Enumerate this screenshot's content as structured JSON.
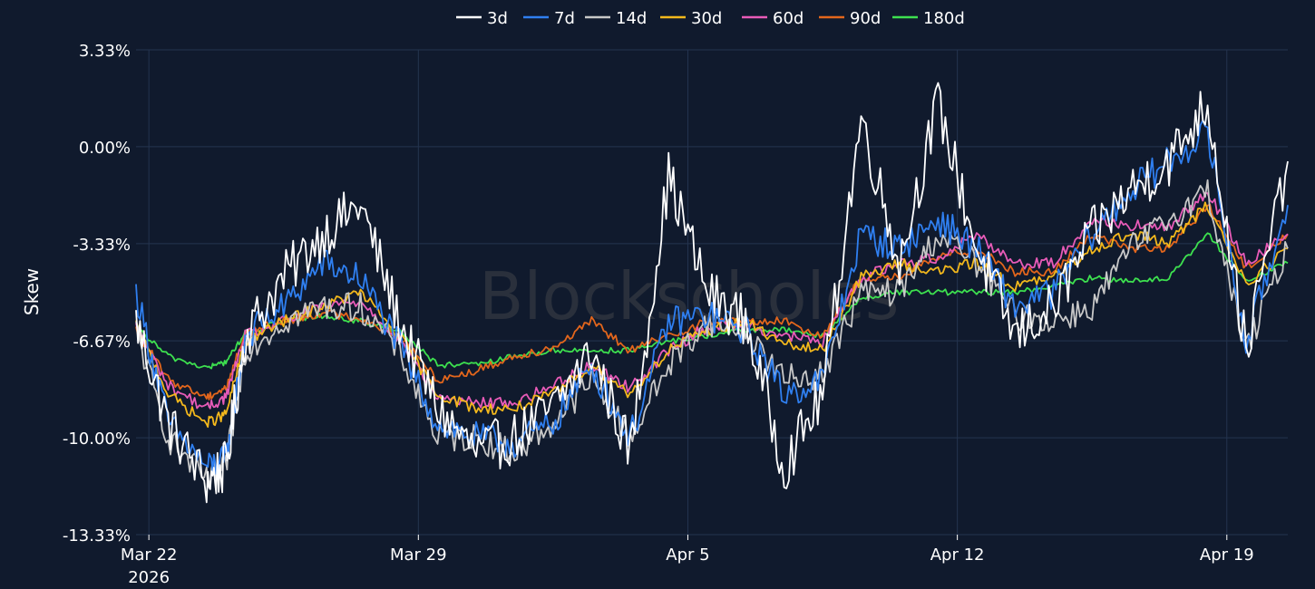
{
  "watermark": "Blockscholes",
  "colors": {
    "background": "#101a2d",
    "grid": "#24344f",
    "text": "#ffffff"
  },
  "chart_data": {
    "type": "line",
    "title": "",
    "xlabel": "",
    "ylabel": "Skew",
    "x_range": [
      "2026-03-21T16:00",
      "2026-04-20T14:00"
    ],
    "ylim": [
      -13.33,
      3.33
    ],
    "y_ticks": [
      {
        "value": 3.33,
        "label": "3.33%"
      },
      {
        "value": 0.0,
        "label": "0.00%"
      },
      {
        "value": -3.33,
        "label": "-3.33%"
      },
      {
        "value": -6.67,
        "label": "-6.67%"
      },
      {
        "value": -10.0,
        "label": "-10.00%"
      },
      {
        "value": -13.33,
        "label": "-13.33%"
      }
    ],
    "x_ticks": [
      {
        "date": "2026-03-22",
        "label": "Mar 22",
        "sublabel": "2026"
      },
      {
        "date": "2026-03-29",
        "label": "Mar 29",
        "sublabel": ""
      },
      {
        "date": "2026-04-05",
        "label": "Apr 5",
        "sublabel": ""
      },
      {
        "date": "2026-04-12",
        "label": "Apr 12",
        "sublabel": ""
      },
      {
        "date": "2026-04-19",
        "label": "Apr 19",
        "sublabel": ""
      }
    ],
    "grid": true,
    "legend_position": "top-center",
    "dates": [
      "2026-03-21T16:00",
      "2026-03-22T12:00",
      "2026-03-23T12:00",
      "2026-03-24T00:00",
      "2026-03-24T12:00",
      "2026-03-25T12:00",
      "2026-03-26T12:00",
      "2026-03-27T12:00",
      "2026-03-28T12:00",
      "2026-03-29T12:00",
      "2026-03-30T12:00",
      "2026-03-31T12:00",
      "2026-04-01T12:00",
      "2026-04-02T12:00",
      "2026-04-03T12:00",
      "2026-04-04T12:00",
      "2026-04-05T12:00",
      "2026-04-06T12:00",
      "2026-04-07T12:00",
      "2026-04-08T12:00",
      "2026-04-09T12:00",
      "2026-04-10T12:00",
      "2026-04-11T12:00",
      "2026-04-12T12:00",
      "2026-04-13T12:00",
      "2026-04-14T12:00",
      "2026-04-15T12:00",
      "2026-04-16T12:00",
      "2026-04-17T12:00",
      "2026-04-18T12:00",
      "2026-04-19T12:00",
      "2026-04-20T14:00"
    ],
    "series": [
      {
        "name": "3d",
        "color": "#ffffff",
        "values": [
          -6.0,
          -9.5,
          -11.5,
          -11.0,
          -6.5,
          -4.5,
          -3.0,
          -2.0,
          -6.0,
          -9.0,
          -10.5,
          -10.0,
          -9.0,
          -7.0,
          -10.5,
          -1.0,
          -5.0,
          -6.0,
          -11.0,
          -8.5,
          1.0,
          -4.0,
          1.5,
          -3.5,
          -6.5,
          -5.5,
          -3.0,
          -1.5,
          -0.5,
          1.5,
          -7.0,
          -0.5
        ]
      },
      {
        "name": "7d",
        "color": "#2f7ff0",
        "values": [
          -5.0,
          -9.5,
          -11.0,
          -10.8,
          -6.5,
          -5.5,
          -4.0,
          -4.5,
          -6.8,
          -9.5,
          -10.0,
          -10.2,
          -9.5,
          -7.5,
          -10.0,
          -6.0,
          -5.8,
          -6.3,
          -8.5,
          -8.0,
          -3.0,
          -3.5,
          -2.5,
          -3.5,
          -5.5,
          -5.0,
          -3.0,
          -1.5,
          -0.5,
          0.5,
          -6.8,
          -2.0
        ]
      },
      {
        "name": "14d",
        "color": "#c8c8c8",
        "values": [
          -6.3,
          -10.0,
          -11.5,
          -11.0,
          -7.0,
          -6.0,
          -5.5,
          -5.5,
          -7.0,
          -10.0,
          -10.0,
          -10.5,
          -9.5,
          -8.0,
          -10.0,
          -7.5,
          -6.0,
          -6.3,
          -8.0,
          -7.8,
          -5.0,
          -5.0,
          -3.0,
          -4.0,
          -5.8,
          -6.0,
          -5.5,
          -3.5,
          -2.5,
          -1.5,
          -7.0,
          -3.5
        ]
      },
      {
        "name": "30d",
        "color": "#f3b81c",
        "values": [
          -6.1,
          -8.5,
          -9.5,
          -9.2,
          -6.7,
          -6.0,
          -5.5,
          -5.0,
          -6.5,
          -8.5,
          -9.0,
          -9.0,
          -8.5,
          -7.5,
          -8.5,
          -7.0,
          -6.3,
          -6.0,
          -6.8,
          -7.0,
          -4.5,
          -4.0,
          -4.3,
          -4.0,
          -4.8,
          -4.5,
          -3.5,
          -3.0,
          -3.3,
          -2.0,
          -4.7,
          -3.5
        ]
      },
      {
        "name": "60d",
        "color": "#e85bb8",
        "values": [
          -6.2,
          -8.2,
          -9.0,
          -8.6,
          -6.5,
          -6.0,
          -5.5,
          -5.3,
          -6.6,
          -8.6,
          -8.8,
          -8.8,
          -8.2,
          -7.5,
          -8.3,
          -7.0,
          -6.2,
          -6.1,
          -6.5,
          -6.7,
          -4.5,
          -4.0,
          -3.8,
          -3.0,
          -4.0,
          -4.0,
          -2.5,
          -2.7,
          -2.8,
          -1.5,
          -4.0,
          -3.0
        ]
      },
      {
        "name": "90d",
        "color": "#e3661c",
        "values": [
          -6.3,
          -8.0,
          -8.6,
          -8.3,
          -6.4,
          -6.0,
          -5.7,
          -5.9,
          -6.5,
          -8.0,
          -7.7,
          -7.2,
          -6.9,
          -6.0,
          -7.0,
          -6.5,
          -6.0,
          -6.0,
          -6.0,
          -6.5,
          -4.5,
          -4.5,
          -3.8,
          -3.5,
          -4.3,
          -4.3,
          -3.0,
          -3.5,
          -3.5,
          -2.0,
          -4.2,
          -3.0
        ]
      },
      {
        "name": "180d",
        "color": "#3de04f",
        "values": [
          -6.2,
          -7.2,
          -7.6,
          -7.4,
          -6.4,
          -6.0,
          -5.8,
          -6.0,
          -6.3,
          -7.5,
          -7.5,
          -7.2,
          -7.0,
          -7.0,
          -7.0,
          -6.7,
          -6.5,
          -6.3,
          -6.3,
          -6.5,
          -5.2,
          -5.0,
          -5.0,
          -5.0,
          -5.0,
          -4.8,
          -4.5,
          -4.6,
          -4.5,
          -3.0,
          -4.6,
          -4.0
        ]
      }
    ]
  }
}
